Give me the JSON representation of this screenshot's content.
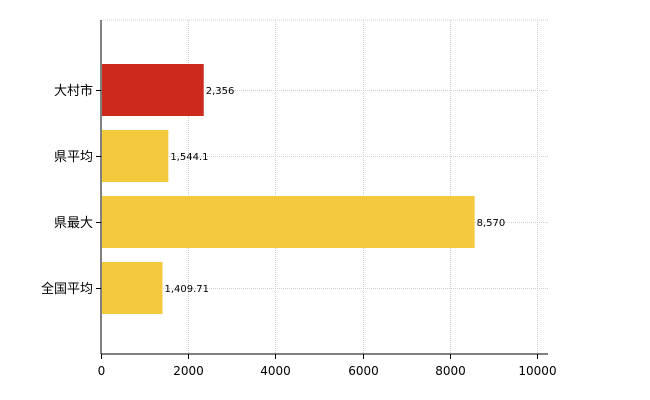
{
  "chart_data": {
    "type": "bar",
    "orientation": "horizontal",
    "categories": [
      "大村市",
      "県平均",
      "県最大",
      "全国平均"
    ],
    "values": [
      2356,
      1544.1,
      8570,
      1409.71
    ],
    "value_labels": [
      "2,356",
      "1,544.1",
      "8,570",
      "1,409.71"
    ],
    "bar_colors": [
      "#cc2a1c",
      "#f5c93c",
      "#f5c93c",
      "#f5c93c"
    ],
    "highlight_color": "#cc2a1c",
    "default_color": "#f5c93c",
    "xlim": [
      0,
      10000
    ],
    "x_ticks": [
      0,
      2000,
      4000,
      6000,
      8000,
      10000
    ],
    "x_tick_labels": [
      "0",
      "2000",
      "4000",
      "6000",
      "8000",
      "10000"
    ],
    "grid": true,
    "legend": false,
    "title": "",
    "xlabel": "",
    "ylabel": ""
  }
}
